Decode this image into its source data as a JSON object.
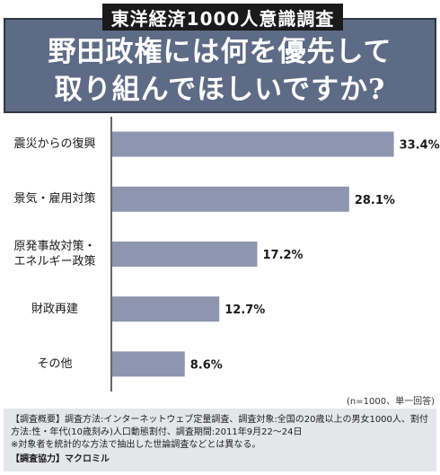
{
  "header": {
    "survey_tag": "東洋経済1000人意識調査",
    "title_line1": "野田政権には何を優先して",
    "title_line2": "取り組んでほしいですか?"
  },
  "chart_data": {
    "type": "bar",
    "orientation": "horizontal",
    "categories": [
      "震災からの復興",
      "景気・雇用対策",
      "原発事故対策・\nエネルギー政策",
      "財政再建",
      "その他"
    ],
    "values": [
      33.4,
      28.1,
      17.2,
      12.7,
      8.6
    ],
    "value_labels": [
      "33.4%",
      "28.1%",
      "17.2%",
      "12.7%",
      "8.6%"
    ],
    "unit": "%",
    "xlim": [
      0,
      36
    ],
    "grid": false,
    "bar_color": "#8e95ae",
    "axis_color": "#333333"
  },
  "sample_note": "(n=1000、単一回答)",
  "footnote": {
    "line1": "【調査概要】調査方法:インターネットウェブ定量調査、調査対象:全国の20歳以上の男女1000人、割付",
    "line2": "方法:性・年代(10歳刻み)人口動態割付、調査期間:2011年9月22〜24日",
    "line3": "※対象者を統計的な方法で抽出した世論調査などとは異なる。",
    "credit": "【調査協力】マクロミル"
  }
}
